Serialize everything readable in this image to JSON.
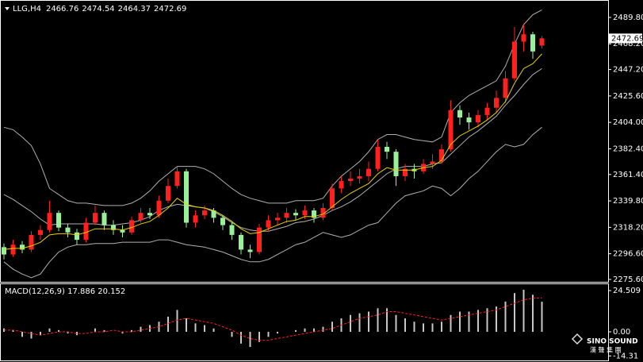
{
  "chart_data": [
    {
      "type": "candlestick",
      "symbol": "LLG,H4",
      "header_values": [
        2466.76,
        2474.54,
        2464.37,
        2472.69
      ],
      "last_price": 2472.69,
      "up_color": "#ff2020",
      "down_color": "#98f098",
      "band_color": "#b0b0b0",
      "ma_color": "#e8d200",
      "ylim": [
        2273.65,
        2500.8
      ],
      "yticks": [
        {
          "value": 2489.8,
          "label": "2489.80"
        },
        {
          "value": 2468.2,
          "label": "2468.20"
        },
        {
          "value": 2447.2,
          "label": "2447.20"
        },
        {
          "value": 2425.6,
          "label": "2425.60"
        },
        {
          "value": 2404,
          "label": "2404.00"
        },
        {
          "value": 2382.4,
          "label": "2382.40"
        },
        {
          "value": 2361.4,
          "label": "2361.40"
        },
        {
          "value": 2339.8,
          "label": "2339.80"
        },
        {
          "value": 2318.2,
          "label": "2318.20"
        },
        {
          "value": 2296.6,
          "label": "2296.60"
        },
        {
          "value": 2275.6,
          "label": "2275.60"
        }
      ],
      "open": [
        2302,
        2296,
        2304,
        2300,
        2312,
        2316,
        2330,
        2318,
        2314,
        2308,
        2322,
        2330,
        2320,
        2316,
        2314,
        2324,
        2330,
        2328,
        2340,
        2352,
        2364,
        2322,
        2328,
        2332,
        2326,
        2320,
        2312,
        2300,
        2298,
        2318,
        2324,
        2326,
        2330,
        2328,
        2332,
        2326,
        2334,
        2350,
        2356,
        2358,
        2360,
        2366,
        2384,
        2380,
        2360,
        2366,
        2364,
        2370,
        2372,
        2382,
        2414,
        2408,
        2404,
        2410,
        2416,
        2424,
        2440,
        2470,
        2476,
        2466.76
      ],
      "high": [
        2305,
        2308,
        2307,
        2315,
        2320,
        2340,
        2332,
        2321,
        2317,
        2326,
        2336,
        2332,
        2324,
        2320,
        2327,
        2334,
        2334,
        2344,
        2358,
        2368,
        2366,
        2332,
        2336,
        2334,
        2328,
        2322,
        2314,
        2304,
        2321,
        2328,
        2330,
        2334,
        2333,
        2336,
        2334,
        2338,
        2354,
        2360,
        2364,
        2366,
        2372,
        2390,
        2388,
        2382,
        2370,
        2370,
        2374,
        2378,
        2386,
        2422,
        2418,
        2412,
        2414,
        2420,
        2430,
        2446,
        2482,
        2484,
        2478,
        2474.54
      ],
      "low": [
        2292,
        2294,
        2297,
        2298,
        2308,
        2314,
        2315,
        2310,
        2304,
        2306,
        2320,
        2316,
        2312,
        2310,
        2312,
        2322,
        2325,
        2326,
        2338,
        2350,
        2318,
        2318,
        2325,
        2322,
        2316,
        2308,
        2296,
        2293,
        2296,
        2315,
        2320,
        2322,
        2324,
        2325,
        2322,
        2324,
        2332,
        2346,
        2352,
        2354,
        2356,
        2364,
        2374,
        2352,
        2356,
        2358,
        2362,
        2366,
        2370,
        2380,
        2402,
        2398,
        2400,
        2406,
        2412,
        2420,
        2438,
        2462,
        2456,
        2464.37
      ],
      "close": [
        2296,
        2304,
        2300,
        2312,
        2316,
        2330,
        2318,
        2314,
        2308,
        2322,
        2330,
        2320,
        2316,
        2314,
        2324,
        2330,
        2328,
        2340,
        2352,
        2364,
        2322,
        2328,
        2332,
        2326,
        2320,
        2312,
        2300,
        2298,
        2318,
        2324,
        2326,
        2330,
        2328,
        2332,
        2326,
        2334,
        2350,
        2356,
        2358,
        2360,
        2366,
        2384,
        2380,
        2360,
        2366,
        2364,
        2370,
        2372,
        2382,
        2414,
        2408,
        2404,
        2410,
        2416,
        2424,
        2440,
        2470,
        2476,
        2462,
        2472.69
      ],
      "band_upper": [
        2400,
        2398,
        2392,
        2385,
        2370,
        2350,
        2345,
        2340,
        2338,
        2338,
        2337,
        2336,
        2336,
        2336,
        2338,
        2342,
        2348,
        2356,
        2362,
        2368,
        2368,
        2368,
        2366,
        2362,
        2356,
        2350,
        2345,
        2342,
        2340,
        2338,
        2338,
        2338,
        2340,
        2340,
        2340,
        2342,
        2352,
        2360,
        2366,
        2372,
        2380,
        2390,
        2394,
        2394,
        2392,
        2390,
        2389,
        2388,
        2392,
        2412,
        2420,
        2426,
        2430,
        2434,
        2438,
        2450,
        2468,
        2484,
        2492,
        2496
      ],
      "band_middle": [
        2345,
        2341,
        2336,
        2331,
        2325,
        2320,
        2321,
        2321,
        2321,
        2321,
        2321,
        2320,
        2320,
        2321,
        2322,
        2324,
        2327,
        2332,
        2335,
        2337,
        2336,
        2335,
        2334,
        2331,
        2327,
        2322,
        2318,
        2316,
        2315,
        2315,
        2317,
        2319,
        2322,
        2323,
        2325,
        2328,
        2332,
        2335,
        2339,
        2344,
        2350,
        2356,
        2362,
        2366,
        2368,
        2368,
        2368,
        2370,
        2371,
        2378,
        2385,
        2392,
        2397,
        2403,
        2409,
        2418,
        2426,
        2435,
        2443,
        2448
      ],
      "band_lower": [
        2290,
        2284,
        2280,
        2277,
        2280,
        2290,
        2298,
        2302,
        2304,
        2304,
        2305,
        2305,
        2305,
        2306,
        2306,
        2306,
        2306,
        2308,
        2308,
        2306,
        2304,
        2303,
        2302,
        2300,
        2298,
        2295,
        2292,
        2290,
        2290,
        2292,
        2296,
        2300,
        2304,
        2306,
        2310,
        2314,
        2312,
        2310,
        2312,
        2316,
        2320,
        2322,
        2330,
        2338,
        2344,
        2346,
        2348,
        2352,
        2350,
        2344,
        2350,
        2358,
        2364,
        2372,
        2380,
        2386,
        2384,
        2386,
        2394,
        2400
      ],
      "ma": [
        2300,
        2301,
        2301,
        2303,
        2306,
        2312,
        2313,
        2313,
        2312,
        2314,
        2317,
        2317,
        2317,
        2316,
        2318,
        2321,
        2323,
        2328,
        2334,
        2342,
        2337,
        2335,
        2334,
        2332,
        2328,
        2323,
        2317,
        2313,
        2314,
        2317,
        2320,
        2323,
        2324,
        2327,
        2327,
        2329,
        2335,
        2341,
        2346,
        2350,
        2354,
        2362,
        2367,
        2365,
        2365,
        2365,
        2367,
        2368,
        2373,
        2386,
        2393,
        2397,
        2401,
        2406,
        2412,
        2421,
        2436,
        2448,
        2452,
        2460
      ]
    },
    {
      "type": "macd",
      "title": "MACD(12,26,9) 17.886 20.152",
      "hist_color": "#c8c8c8",
      "signal_color": "#ff2020",
      "ylim": [
        -16.04,
        28.28
      ],
      "yticks": [
        24.509,
        {
          "value": 0,
          "label": "0.00"
        },
        -14.31
      ],
      "histogram": [
        2,
        1,
        -3,
        -4,
        -2,
        2,
        1,
        -1,
        -2,
        0,
        2,
        1,
        0,
        -1,
        1,
        3,
        4,
        6,
        9,
        13,
        8,
        5,
        4,
        2,
        0,
        -3,
        -7,
        -9,
        -6,
        -3,
        -1,
        0,
        1,
        2,
        2,
        3,
        6,
        8,
        10,
        11,
        12,
        14,
        14,
        10,
        8,
        6,
        5,
        5,
        6,
        10,
        12,
        12,
        13,
        14,
        15,
        18,
        23,
        25,
        22,
        17.886
      ],
      "signal": [
        1,
        1,
        0,
        -1,
        -2,
        -1,
        0,
        0,
        -1,
        -1,
        0,
        0,
        1,
        0,
        0,
        1,
        2,
        3,
        5,
        7,
        8,
        7,
        6,
        5,
        3,
        1,
        -2,
        -4,
        -5,
        -5,
        -4,
        -3,
        -2,
        -1,
        0,
        1,
        2,
        4,
        6,
        8,
        9,
        10,
        12,
        12,
        11,
        10,
        9,
        8,
        7,
        8,
        9,
        10,
        11,
        12,
        13,
        15,
        17,
        19,
        20,
        20.152
      ]
    }
  ],
  "watermark": {
    "brand": "SINO SOUND",
    "chinese": "漢 聲 集 團"
  }
}
